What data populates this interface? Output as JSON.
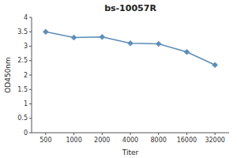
{
  "chart_data": {
    "type": "line",
    "title": "bs-10057R",
    "xlabel": "Titer",
    "ylabel": "OD450nm",
    "categories": [
      "500",
      "1000",
      "2000",
      "4000",
      "8000",
      "16000",
      "32000"
    ],
    "values": [
      3.5,
      3.3,
      3.32,
      3.1,
      3.08,
      2.8,
      2.35
    ],
    "color": "#5b8db8",
    "marker": "diamond",
    "ylim": [
      0,
      4
    ],
    "yticks": [
      0,
      0.5,
      1,
      1.5,
      2,
      2.5,
      3,
      3.5,
      4
    ],
    "grid": false
  }
}
